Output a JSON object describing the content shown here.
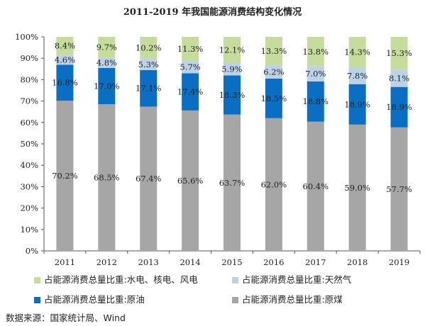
{
  "chart_data": {
    "type": "bar",
    "stacked": true,
    "title": "2011-2019 年我国能源消费结构变化情况",
    "categories": [
      "2011",
      "2012",
      "2013",
      "2014",
      "2015",
      "2016",
      "2017",
      "2018",
      "2019"
    ],
    "ylim": [
      0,
      100
    ],
    "yticks": [
      "0%",
      "10%",
      "20%",
      "30%",
      "40%",
      "50%",
      "60%",
      "70%",
      "80%",
      "90%",
      "100%"
    ],
    "series": [
      {
        "name": "占能源消费总量比重:原煤",
        "color": "#a6a6a6",
        "values": [
          70.2,
          68.5,
          67.4,
          65.6,
          63.7,
          62.0,
          60.4,
          59.0,
          57.7
        ],
        "labels": [
          "70.2%",
          "68.5%",
          "67.4%",
          "65.6%",
          "63.7%",
          "62.0%",
          "60.4%",
          "59.0%",
          "57.7%"
        ]
      },
      {
        "name": "占能源消费总量比重:原油",
        "color": "#0a6fc2",
        "values": [
          16.8,
          17.0,
          17.1,
          17.4,
          18.3,
          18.5,
          18.8,
          18.9,
          18.9
        ],
        "labels": [
          "16.8%",
          "17.0%",
          "17.1%",
          "17.4%",
          "18.3%",
          "18.5%",
          "18.8%",
          "18.9%",
          "18.9%"
        ]
      },
      {
        "name": "占能源消费总量比重:天然气",
        "color": "#bcd2e8",
        "values": [
          4.6,
          4.8,
          5.3,
          5.7,
          5.9,
          6.2,
          7.0,
          7.8,
          8.1
        ],
        "labels": [
          "4.6%",
          "4.8%",
          "5.3%",
          "5.7%",
          "5.9%",
          "6.2%",
          "7.0%",
          "7.8%",
          "8.1%"
        ]
      },
      {
        "name": "占能源消费总量比重:水电、核电、风电",
        "color": "#c5dc9c",
        "values": [
          8.4,
          9.7,
          10.2,
          11.3,
          12.1,
          13.3,
          13.8,
          14.3,
          15.3
        ],
        "labels": [
          "8.4%",
          "9.7%",
          "10.2%",
          "11.3%",
          "12.1%",
          "13.3%",
          "13.8%",
          "14.3%",
          "15.3%"
        ]
      }
    ],
    "grid": false,
    "legend_placement": "bottom"
  },
  "legend": {
    "hydro": "占能源消费总量比重:水电、核电、风电",
    "gas": "占能源消费总量比重:天然气",
    "oil": "占能源消费总量比重:原油",
    "coal": "占能源消费总量比重:原煤"
  },
  "source_note": "数据来源：国家统计局、Wind"
}
